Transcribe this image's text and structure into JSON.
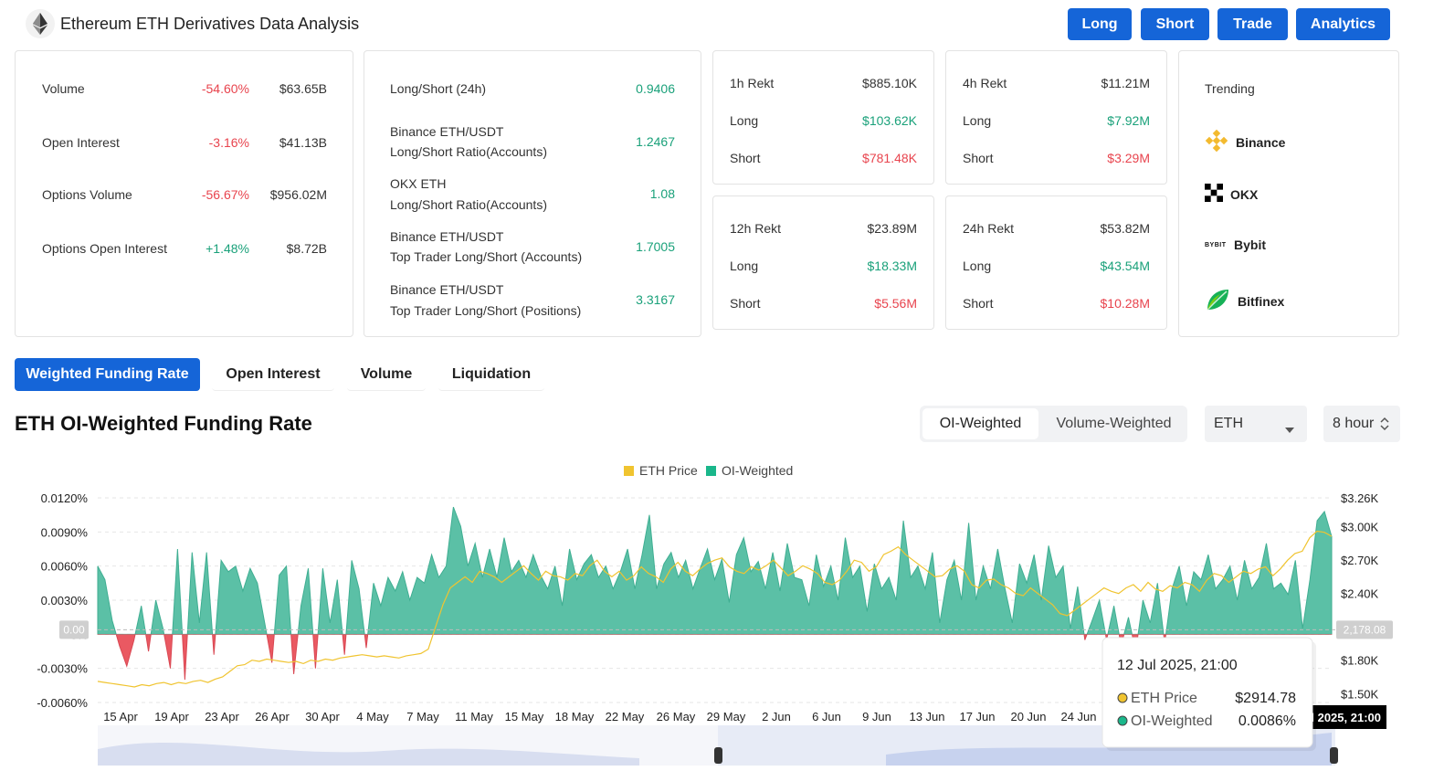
{
  "header": {
    "title": "Ethereum ETH Derivatives Data Analysis",
    "buttons": [
      "Long",
      "Short",
      "Trade",
      "Analytics"
    ]
  },
  "stats": {
    "rows": [
      {
        "label": "Volume",
        "pct": "-54.60%",
        "value": "$63.65B",
        "dir": "neg"
      },
      {
        "label": "Open Interest",
        "pct": "-3.16%",
        "value": "$41.13B",
        "dir": "neg"
      },
      {
        "label": "Options Volume",
        "pct": "-56.67%",
        "value": "$956.02M",
        "dir": "neg"
      },
      {
        "label": "Options Open Interest",
        "pct": "+1.48%",
        "value": "$8.72B",
        "dir": "pos"
      }
    ]
  },
  "long_short": {
    "rows": [
      {
        "line1": "Long/Short (24h)",
        "line2": "",
        "value": "0.9406"
      },
      {
        "line1": "Binance ETH/USDT",
        "line2": "Long/Short Ratio(Accounts)",
        "value": "1.2467"
      },
      {
        "line1": "OKX ETH",
        "line2": "Long/Short Ratio(Accounts)",
        "value": "1.08"
      },
      {
        "line1": "Binance ETH/USDT",
        "line2": "Top Trader Long/Short (Accounts)",
        "value": "1.7005"
      },
      {
        "line1": "Binance ETH/USDT",
        "line2": "Top Trader Long/Short (Positions)",
        "value": "3.3167"
      }
    ]
  },
  "rekt": [
    {
      "title": "1h Rekt",
      "total": "$885.10K",
      "long_label": "Long",
      "long": "$103.62K",
      "short_label": "Short",
      "short": "$781.48K"
    },
    {
      "title": "4h Rekt",
      "total": "$11.21M",
      "long_label": "Long",
      "long": "$7.92M",
      "short_label": "Short",
      "short": "$3.29M"
    },
    {
      "title": "12h Rekt",
      "total": "$23.89M",
      "long_label": "Long",
      "long": "$18.33M",
      "short_label": "Short",
      "short": "$5.56M"
    },
    {
      "title": "24h Rekt",
      "total": "$53.82M",
      "long_label": "Long",
      "long": "$43.54M",
      "short_label": "Short",
      "short": "$10.28M"
    }
  ],
  "trending": {
    "title": "Trending",
    "items": [
      "Binance",
      "OKX",
      "Bybit",
      "Bitfinex"
    ],
    "bybit_logo_text": "BYBIT"
  },
  "tabs": [
    "Weighted Funding Rate",
    "Open Interest",
    "Volume",
    "Liquidation"
  ],
  "section": {
    "title": "ETH OI-Weighted Funding Rate",
    "segments": [
      "OI-Weighted",
      "Volume-Weighted"
    ],
    "coin": "ETH",
    "interval": "8 hour"
  },
  "colors": {
    "accent": "#1565d8",
    "positive": "#1aa17a",
    "negative": "#e8444e",
    "area_pos": "#5bc0a6",
    "area_neg": "#ea5962",
    "price": "#f0c430"
  },
  "chart_data": {
    "type": "area",
    "legend": [
      "ETH Price",
      "OI-Weighted"
    ],
    "legend_position": "top-center",
    "x_ticks": [
      "15 Apr",
      "19 Apr",
      "23 Apr",
      "26 Apr",
      "30 Apr",
      "4 May",
      "7 May",
      "11 May",
      "15 May",
      "18 May",
      "22 May",
      "26 May",
      "29 May",
      "2 Jun",
      "6 Jun",
      "9 Jun",
      "13 Jun",
      "17 Jun",
      "20 Jun",
      "24 Jun"
    ],
    "y_left_ticks": [
      "0.0120%",
      "0.0090%",
      "0.0060%",
      "0.0030%",
      "0%",
      "-0.0030%",
      "-0.0060%"
    ],
    "y_left_range": [
      -0.006,
      0.012
    ],
    "y_right_ticks": [
      "$3.26K",
      "$3.00K",
      "$2.70K",
      "$2.40K",
      "$1.80K",
      "$1.50K"
    ],
    "y_right_range": [
      1420,
      3260
    ],
    "zero_label": "0.00",
    "price_label": "2,178.08",
    "series": [
      {
        "name": "OI-Weighted",
        "unit": "%",
        "values": [
          0.006,
          0.0048,
          0.0012,
          -0.001,
          -0.0028,
          -0.0005,
          0.0025,
          -0.0015,
          0.003,
          0.0005,
          -0.003,
          0.0075,
          -0.004,
          0.0072,
          0.001,
          0.0072,
          -0.0018,
          0.0065,
          0.0055,
          0.006,
          0.0038,
          0.0058,
          0.0045,
          0.001,
          -0.0025,
          0.0052,
          0.006,
          -0.0035,
          0.0025,
          0.0058,
          -0.003,
          0.0058,
          0.001,
          0.0048,
          -0.0018,
          0.0065,
          0.004,
          -0.0012,
          0.0045,
          0.0025,
          0.005,
          0.0038,
          0.0055,
          0.003,
          0.005,
          0.0045,
          0.007,
          0.005,
          0.006,
          0.0112,
          0.0095,
          0.006,
          0.008,
          0.005,
          0.0075,
          0.005,
          0.0085,
          0.0055,
          0.0065,
          0.005,
          0.007,
          0.0052,
          0.004,
          0.006,
          0.0025,
          0.0075,
          0.0048,
          0.0062,
          0.007,
          0.005,
          0.006,
          0.004,
          0.0055,
          0.0075,
          0.004,
          0.007,
          0.0105,
          0.004,
          0.0062,
          0.0072,
          0.005,
          0.0065,
          0.004,
          0.0058,
          0.0075,
          0.0048,
          0.0066,
          0.0028,
          0.007,
          0.0085,
          0.0055,
          0.0064,
          0.004,
          0.0072,
          0.0038,
          0.008,
          0.005,
          0.0048,
          0.0025,
          0.007,
          0.0042,
          0.006,
          0.003,
          0.0085,
          0.005,
          0.006,
          0.002,
          0.0062,
          0.004,
          0.005,
          0.003,
          0.01,
          0.005,
          0.006,
          0.004,
          0.0072,
          0.001,
          0.0048,
          0.0065,
          0.003,
          0.0098,
          0.003,
          0.006,
          0.004,
          0.0075,
          0.004,
          0.001,
          0.0062,
          0.0045,
          0.007,
          0.003,
          0.0078,
          0.005,
          0.006,
          0.0005,
          0.0042,
          -0.0005,
          0.0012,
          0.003,
          -0.0005,
          0.0025,
          -0.001,
          0.0015,
          -0.0015,
          0.003,
          0.001,
          0.0045,
          -0.0008,
          0.004,
          0.006,
          0.0025,
          0.0055,
          0.0048,
          0.007,
          0.004,
          0.0048,
          0.006,
          0.003,
          0.0065,
          0.004,
          0.005,
          0.008,
          0.004,
          0.0045,
          0.0035,
          0.0065,
          0.0005,
          0.0048,
          0.01,
          0.0108,
          0.0086
        ]
      },
      {
        "name": "ETH Price",
        "unit": "USD",
        "values": [
          1610,
          1600,
          1590,
          1580,
          1570,
          1560,
          1580,
          1570,
          1590,
          1600,
          1580,
          1600,
          1590,
          1610,
          1620,
          1600,
          1630,
          1650,
          1700,
          1750,
          1760,
          1800,
          1790,
          1810,
          1800,
          1790,
          1780,
          1790,
          1770,
          1800,
          1790,
          1810,
          1800,
          1820,
          1830,
          1840,
          1850,
          1840,
          1830,
          1840,
          1830,
          1820,
          1840,
          1850,
          1860,
          1900,
          2100,
          2300,
          2450,
          2500,
          2550,
          2500,
          2600,
          2580,
          2550,
          2500,
          2550,
          2600,
          2650,
          2580,
          2520,
          2600,
          2560,
          2550,
          2520,
          2580,
          2560,
          2650,
          2700,
          2600,
          2550,
          2600,
          2520,
          2560,
          2640,
          2580,
          2550,
          2500,
          2620,
          2680,
          2600,
          2560,
          2620,
          2670,
          2700,
          2720,
          2640,
          2600,
          2580,
          2640,
          2610,
          2650,
          2700,
          2630,
          2560,
          2600,
          2650,
          2620,
          2580,
          2500,
          2480,
          2520,
          2600,
          2700,
          2680,
          2600,
          2640,
          2750,
          2780,
          2820,
          2750,
          2700,
          2650,
          2600,
          2550,
          2560,
          2620,
          2650,
          2600,
          2480,
          2450,
          2520,
          2530,
          2480,
          2450,
          2400,
          2380,
          2450,
          2400,
          2350,
          2300,
          2220,
          2200,
          2250,
          2300,
          2350,
          2400,
          2450,
          2420,
          2400,
          2450,
          2480,
          2420,
          2500,
          2440,
          2420,
          2470,
          2450,
          2500,
          2480,
          2420,
          2520,
          2580,
          2560,
          2500,
          2550,
          2600,
          2580,
          2620,
          2640,
          2560,
          2620,
          2700,
          2760,
          2780,
          2900,
          2960,
          2950,
          2914
        ]
      }
    ],
    "tooltip": {
      "date": "12 Jul 2025, 21:00",
      "price_label": "ETH Price",
      "price": "$2914.78",
      "oi_label": "OI-Weighted",
      "oi": "0.0086%"
    },
    "crosshair_label": "12 Jul 2025, 21:00"
  }
}
